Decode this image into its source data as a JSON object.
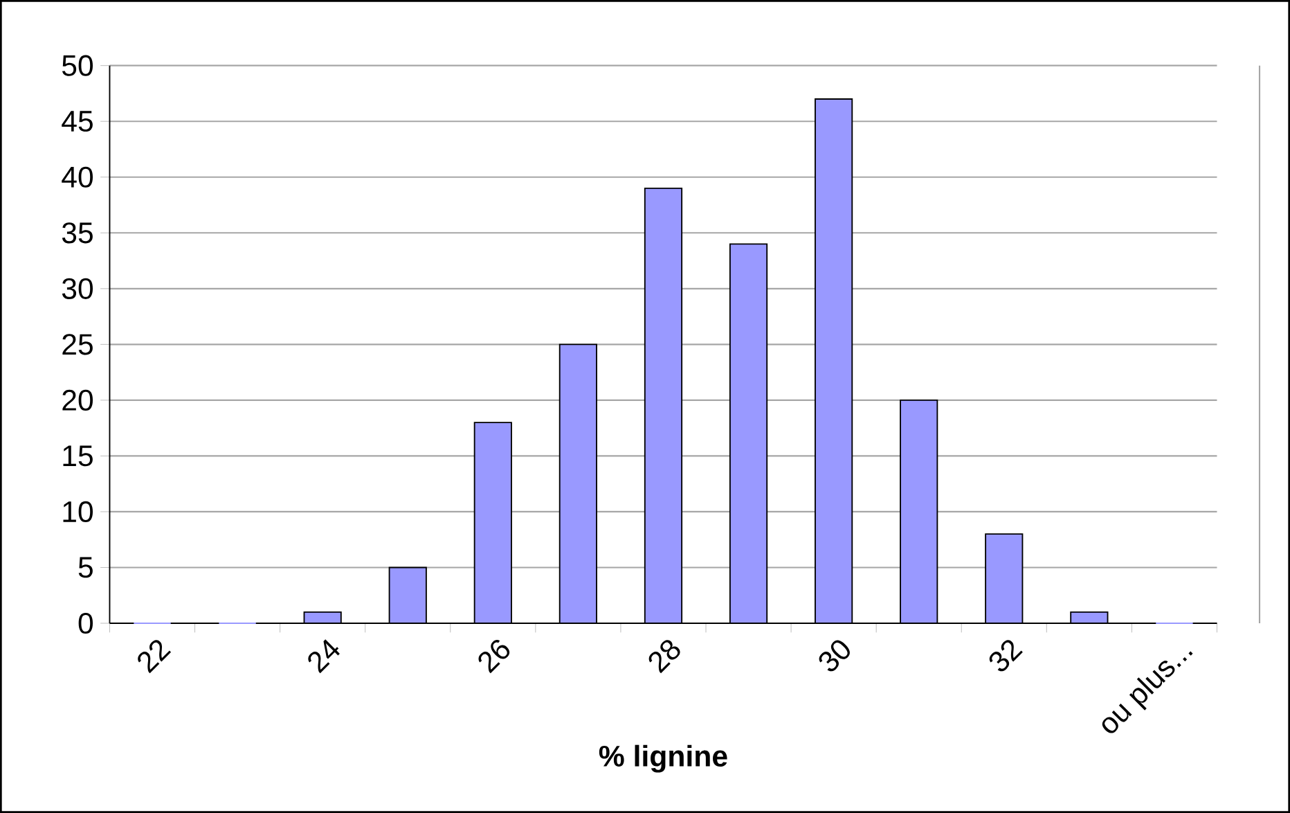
{
  "chart_data": {
    "type": "bar",
    "xlabel": "% lignine",
    "categories": [
      "22",
      null,
      "24",
      null,
      "26",
      null,
      "28",
      null,
      "30",
      null,
      "32",
      null,
      "ou plus..."
    ],
    "values": [
      0,
      0,
      1,
      5,
      18,
      25,
      39,
      34,
      47,
      20,
      8,
      1,
      0
    ],
    "color": "#9999ff",
    "ylim": [
      0,
      50
    ],
    "yticks": [
      0,
      5,
      10,
      15,
      20,
      25,
      30,
      35,
      40,
      45,
      50
    ],
    "grid": "y"
  }
}
